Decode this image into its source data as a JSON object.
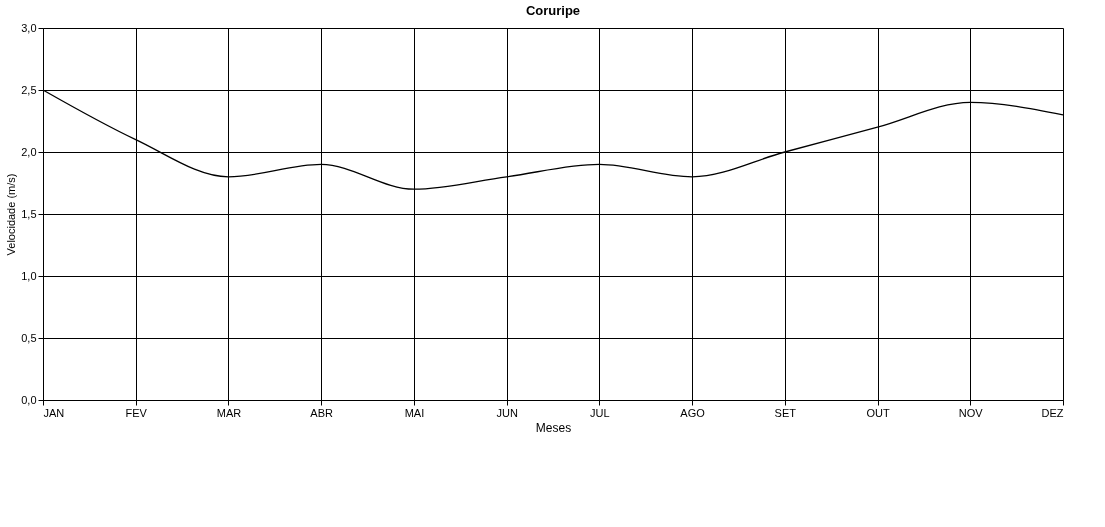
{
  "chart_data": {
    "type": "line",
    "title": "Coruripe",
    "xlabel": "Meses",
    "ylabel": "Velocidade (m/s)",
    "categories": [
      "JAN",
      "FEV",
      "MAR",
      "ABR",
      "MAI",
      "JUN",
      "JUL",
      "AGO",
      "SET",
      "OUT",
      "NOV",
      "DEZ"
    ],
    "series": [
      {
        "color": "#000000",
        "values": [
          2.5,
          2.1,
          1.8,
          1.9,
          1.7,
          1.8,
          1.9,
          1.8,
          2.0,
          2.2,
          2.4,
          2.3
        ]
      }
    ],
    "ylim": [
      0,
      3
    ],
    "yticks": [
      {
        "value": 0,
        "label": "0,0"
      },
      {
        "value": 0.5,
        "label": "0,5"
      },
      {
        "value": 1,
        "label": "1,0"
      },
      {
        "value": 1.5,
        "label": "1,5"
      },
      {
        "value": 2,
        "label": "2,0"
      },
      {
        "value": 2.5,
        "label": "2,5"
      },
      {
        "value": 3,
        "label": "3,0"
      }
    ],
    "grid": true,
    "marker": "none",
    "line_style": "solid"
  }
}
